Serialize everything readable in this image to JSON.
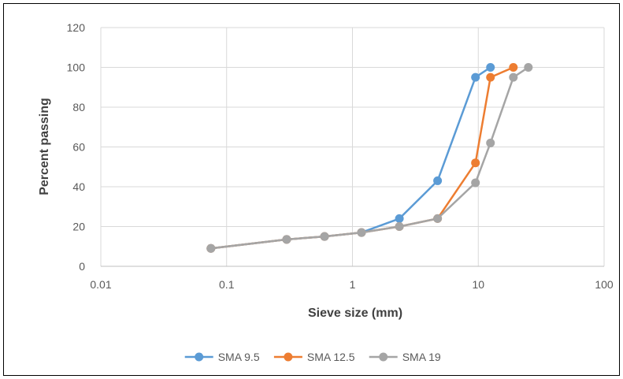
{
  "chart_data": {
    "type": "line",
    "x_scale": "log",
    "xlabel": "Sieve size (mm)",
    "ylabel": "Percent passing",
    "xlim": [
      0.01,
      100
    ],
    "ylim": [
      0,
      120
    ],
    "x_ticks": [
      "0.01",
      "0.1",
      "1",
      "10",
      "100"
    ],
    "y_ticks": [
      "0",
      "20",
      "40",
      "60",
      "80",
      "100",
      "120"
    ],
    "grid": true,
    "legend_position": "bottom",
    "series": [
      {
        "name": "SMA 9.5",
        "color": "#5B9BD5",
        "x": [
          0.075,
          0.3,
          0.6,
          1.18,
          2.36,
          4.75,
          9.5,
          12.5
        ],
        "y": [
          9,
          13.5,
          15,
          17,
          24,
          43,
          95,
          100
        ]
      },
      {
        "name": "SMA 12.5",
        "color": "#ED7D31",
        "x": [
          0.075,
          0.3,
          0.6,
          1.18,
          2.36,
          4.75,
          9.5,
          12.5,
          19
        ],
        "y": [
          9,
          13.5,
          15,
          17,
          20,
          24,
          52,
          95,
          100
        ]
      },
      {
        "name": "SMA 19",
        "color": "#A5A5A5",
        "x": [
          0.075,
          0.3,
          0.6,
          1.18,
          2.36,
          4.75,
          9.5,
          12.5,
          19,
          25
        ],
        "y": [
          9,
          13.5,
          15,
          17,
          20,
          24,
          42,
          62,
          95,
          100
        ]
      }
    ]
  }
}
